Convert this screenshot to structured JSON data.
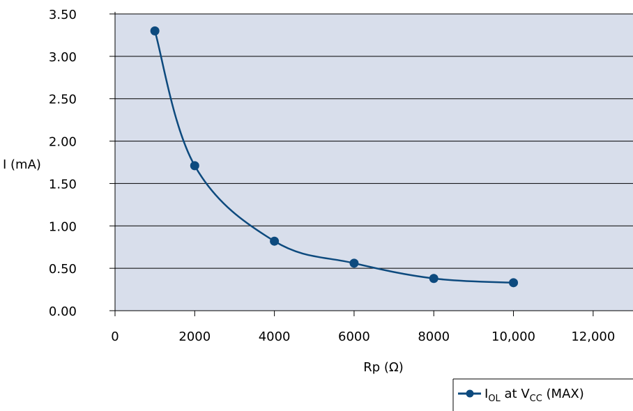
{
  "chart_data": {
    "type": "line",
    "title": "",
    "xlabel": "Rp (Ω)",
    "ylabel": "I (mA)",
    "xlim": [
      0,
      13000
    ],
    "ylim": [
      0,
      3.5
    ],
    "x_ticks": [
      0,
      2000,
      4000,
      6000,
      8000,
      10000,
      12000
    ],
    "x_tick_labels": [
      "0",
      "2000",
      "4000",
      "6000",
      "8000",
      "10,000",
      "12,000"
    ],
    "y_ticks": [
      0,
      0.5,
      1.0,
      1.5,
      2.0,
      2.5,
      3.0,
      3.5
    ],
    "y_tick_labels": [
      "0.00",
      "0.50",
      "1.00",
      "1.50",
      "2.00",
      "2.50",
      "3.00",
      "3.50"
    ],
    "grid": "horizontal",
    "legend_position": "bottom-right",
    "series": [
      {
        "name": "IOL at VCC (MAX)",
        "legend": {
          "main1": "I",
          "sub1": "OL",
          "main2": " at V",
          "sub2": "CC",
          "main3": " (MAX)"
        },
        "x": [
          1000,
          2000,
          4000,
          6000,
          8000,
          10000
        ],
        "y": [
          3.3,
          1.71,
          0.82,
          0.56,
          0.38,
          0.33
        ]
      }
    ],
    "colors": {
      "plot_background": "#D8DEEB",
      "series": "#0D4A7E",
      "grid": "#000000",
      "axis": "#000000"
    }
  }
}
